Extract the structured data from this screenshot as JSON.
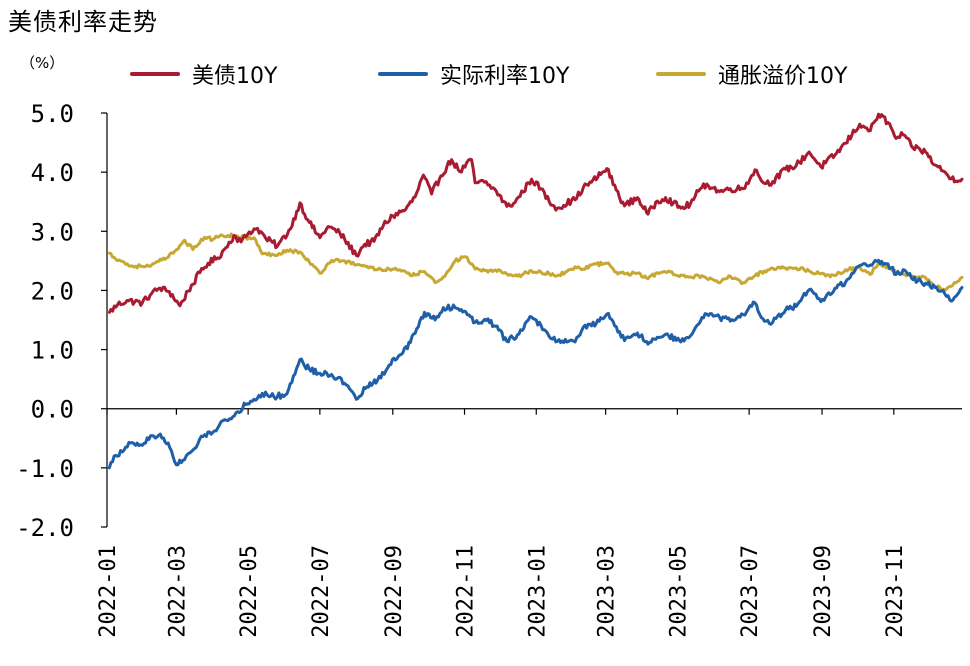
{
  "title": "美债利率走势",
  "unit": "（%）",
  "colors": {
    "nominal": "#a91b31",
    "real": "#1f5fa8",
    "breakeven": "#c7a832",
    "axis": "#000000"
  },
  "chart_data": {
    "type": "line",
    "title": "美债利率走势",
    "ylabel": "（%）",
    "xlabel": "",
    "ylim": [
      -2.0,
      5.0
    ],
    "yticks": [
      "5.0",
      "4.0",
      "3.0",
      "2.0",
      "1.0",
      "0.0",
      "-1.0",
      "-2.0"
    ],
    "xlim": [
      "2022-01-01",
      "2023-12-29"
    ],
    "xticks": [
      "2022-01",
      "2022-03",
      "2022-05",
      "2022-07",
      "2022-09",
      "2022-11",
      "2023-01",
      "2023-03",
      "2023-05",
      "2023-07",
      "2023-09",
      "2023-11"
    ],
    "grid": false,
    "legend_position": "top",
    "series": [
      {
        "name": "美债10Y",
        "color": "#a91b31",
        "points": [
          [
            "2022-01-03",
            1.63
          ],
          [
            "2022-01-10",
            1.76
          ],
          [
            "2022-01-18",
            1.83
          ],
          [
            "2022-01-31",
            1.79
          ],
          [
            "2022-02-08",
            1.95
          ],
          [
            "2022-02-15",
            2.04
          ],
          [
            "2022-02-23",
            1.98
          ],
          [
            "2022-03-04",
            1.74
          ],
          [
            "2022-03-11",
            1.99
          ],
          [
            "2022-03-21",
            2.3
          ],
          [
            "2022-03-28",
            2.46
          ],
          [
            "2022-04-05",
            2.55
          ],
          [
            "2022-04-12",
            2.72
          ],
          [
            "2022-04-19",
            2.93
          ],
          [
            "2022-04-25",
            2.82
          ],
          [
            "2022-05-02",
            2.99
          ],
          [
            "2022-05-09",
            3.05
          ],
          [
            "2022-05-16",
            2.88
          ],
          [
            "2022-05-26",
            2.75
          ],
          [
            "2022-06-06",
            3.04
          ],
          [
            "2022-06-14",
            3.48
          ],
          [
            "2022-06-22",
            3.15
          ],
          [
            "2022-07-01",
            2.89
          ],
          [
            "2022-07-08",
            3.08
          ],
          [
            "2022-07-18",
            2.97
          ],
          [
            "2022-08-01",
            2.59
          ],
          [
            "2022-08-08",
            2.78
          ],
          [
            "2022-08-16",
            2.83
          ],
          [
            "2022-08-24",
            3.1
          ],
          [
            "2022-09-01",
            3.26
          ],
          [
            "2022-09-12",
            3.37
          ],
          [
            "2022-09-20",
            3.58
          ],
          [
            "2022-09-27",
            3.95
          ],
          [
            "2022-10-04",
            3.63
          ],
          [
            "2022-10-12",
            3.94
          ],
          [
            "2022-10-21",
            4.21
          ],
          [
            "2022-10-28",
            4.01
          ],
          [
            "2022-11-07",
            4.21
          ],
          [
            "2022-11-10",
            3.82
          ],
          [
            "2022-11-18",
            3.83
          ],
          [
            "2022-11-28",
            3.68
          ],
          [
            "2022-12-07",
            3.42
          ],
          [
            "2022-12-14",
            3.49
          ],
          [
            "2022-12-28",
            3.88
          ],
          [
            "2023-01-05",
            3.72
          ],
          [
            "2023-01-12",
            3.5
          ],
          [
            "2023-01-19",
            3.39
          ],
          [
            "2023-01-31",
            3.52
          ],
          [
            "2023-02-03",
            3.53
          ],
          [
            "2023-02-10",
            3.74
          ],
          [
            "2023-02-17",
            3.83
          ],
          [
            "2023-03-02",
            4.06
          ],
          [
            "2023-03-10",
            3.7
          ],
          [
            "2023-03-17",
            3.43
          ],
          [
            "2023-03-28",
            3.57
          ],
          [
            "2023-04-06",
            3.29
          ],
          [
            "2023-04-14",
            3.51
          ],
          [
            "2023-04-21",
            3.57
          ],
          [
            "2023-05-04",
            3.39
          ],
          [
            "2023-05-12",
            3.46
          ],
          [
            "2023-05-19",
            3.68
          ],
          [
            "2023-05-26",
            3.8
          ],
          [
            "2023-06-06",
            3.67
          ],
          [
            "2023-06-15",
            3.72
          ],
          [
            "2023-06-26",
            3.72
          ],
          [
            "2023-07-06",
            4.04
          ],
          [
            "2023-07-14",
            3.81
          ],
          [
            "2023-07-21",
            3.84
          ],
          [
            "2023-08-01",
            4.05
          ],
          [
            "2023-08-10",
            4.11
          ],
          [
            "2023-08-21",
            4.34
          ],
          [
            "2023-08-31",
            4.09
          ],
          [
            "2023-09-12",
            4.29
          ],
          [
            "2023-09-21",
            4.49
          ],
          [
            "2023-10-03",
            4.81
          ],
          [
            "2023-10-06",
            4.78
          ],
          [
            "2023-10-12",
            4.7
          ],
          [
            "2023-10-19",
            4.98
          ],
          [
            "2023-10-27",
            4.84
          ],
          [
            "2023-11-03",
            4.57
          ],
          [
            "2023-11-09",
            4.63
          ],
          [
            "2023-11-16",
            4.44
          ],
          [
            "2023-11-28",
            4.34
          ],
          [
            "2023-12-06",
            4.12
          ],
          [
            "2023-12-13",
            4.02
          ],
          [
            "2023-12-20",
            3.89
          ],
          [
            "2023-12-29",
            3.88
          ]
        ]
      },
      {
        "name": "实际利率10Y",
        "color": "#1f5fa8",
        "points": [
          [
            "2022-01-03",
            -1.0
          ],
          [
            "2022-01-07",
            -0.8
          ],
          [
            "2022-01-14",
            -0.73
          ],
          [
            "2022-01-21",
            -0.58
          ],
          [
            "2022-01-31",
            -0.62
          ],
          [
            "2022-02-07",
            -0.46
          ],
          [
            "2022-02-14",
            -0.45
          ],
          [
            "2022-02-22",
            -0.58
          ],
          [
            "2022-03-01",
            -0.95
          ],
          [
            "2022-03-08",
            -0.86
          ],
          [
            "2022-03-15",
            -0.7
          ],
          [
            "2022-03-25",
            -0.44
          ],
          [
            "2022-04-01",
            -0.4
          ],
          [
            "2022-04-08",
            -0.22
          ],
          [
            "2022-04-14",
            -0.2
          ],
          [
            "2022-04-22",
            -0.05
          ],
          [
            "2022-04-29",
            0.07
          ],
          [
            "2022-05-06",
            0.16
          ],
          [
            "2022-05-13",
            0.26
          ],
          [
            "2022-05-23",
            0.2
          ],
          [
            "2022-06-03",
            0.25
          ],
          [
            "2022-06-14",
            0.83
          ],
          [
            "2022-06-22",
            0.67
          ],
          [
            "2022-07-01",
            0.6
          ],
          [
            "2022-07-11",
            0.58
          ],
          [
            "2022-07-22",
            0.43
          ],
          [
            "2022-08-01",
            0.16
          ],
          [
            "2022-08-10",
            0.37
          ],
          [
            "2022-08-19",
            0.48
          ],
          [
            "2022-08-29",
            0.74
          ],
          [
            "2022-09-07",
            0.91
          ],
          [
            "2022-09-16",
            1.12
          ],
          [
            "2022-09-28",
            1.63
          ],
          [
            "2022-10-07",
            1.5
          ],
          [
            "2022-10-14",
            1.71
          ],
          [
            "2022-10-24",
            1.71
          ],
          [
            "2022-11-02",
            1.64
          ],
          [
            "2022-11-10",
            1.46
          ],
          [
            "2022-11-21",
            1.52
          ],
          [
            "2022-11-30",
            1.33
          ],
          [
            "2022-12-07",
            1.14
          ],
          [
            "2022-12-16",
            1.25
          ],
          [
            "2022-12-28",
            1.55
          ],
          [
            "2023-01-05",
            1.41
          ],
          [
            "2023-01-12",
            1.22
          ],
          [
            "2023-01-19",
            1.14
          ],
          [
            "2023-01-31",
            1.16
          ],
          [
            "2023-02-03",
            1.13
          ],
          [
            "2023-02-10",
            1.38
          ],
          [
            "2023-02-17",
            1.4
          ],
          [
            "2023-03-02",
            1.6
          ],
          [
            "2023-03-10",
            1.39
          ],
          [
            "2023-03-17",
            1.15
          ],
          [
            "2023-03-28",
            1.28
          ],
          [
            "2023-04-06",
            1.09
          ],
          [
            "2023-04-14",
            1.21
          ],
          [
            "2023-04-21",
            1.26
          ],
          [
            "2023-05-04",
            1.13
          ],
          [
            "2023-05-12",
            1.23
          ],
          [
            "2023-05-19",
            1.43
          ],
          [
            "2023-05-26",
            1.6
          ],
          [
            "2023-06-06",
            1.54
          ],
          [
            "2023-06-15",
            1.48
          ],
          [
            "2023-06-26",
            1.59
          ],
          [
            "2023-07-06",
            1.79
          ],
          [
            "2023-07-14",
            1.48
          ],
          [
            "2023-07-21",
            1.46
          ],
          [
            "2023-08-01",
            1.67
          ],
          [
            "2023-08-10",
            1.73
          ],
          [
            "2023-08-21",
            2.01
          ],
          [
            "2023-08-31",
            1.81
          ],
          [
            "2023-09-12",
            2.04
          ],
          [
            "2023-09-21",
            2.14
          ],
          [
            "2023-10-03",
            2.42
          ],
          [
            "2023-10-06",
            2.45
          ],
          [
            "2023-10-12",
            2.43
          ],
          [
            "2023-10-19",
            2.51
          ],
          [
            "2023-10-27",
            2.45
          ],
          [
            "2023-11-03",
            2.27
          ],
          [
            "2023-11-09",
            2.35
          ],
          [
            "2023-11-16",
            2.21
          ],
          [
            "2023-11-28",
            2.12
          ],
          [
            "2023-12-06",
            2.05
          ],
          [
            "2023-12-13",
            2.0
          ],
          [
            "2023-12-20",
            1.82
          ],
          [
            "2023-12-29",
            2.05
          ]
        ]
      },
      {
        "name": "通胀溢价10Y",
        "color": "#c7a832",
        "points": [
          [
            "2022-01-03",
            2.63
          ],
          [
            "2022-01-07",
            2.56
          ],
          [
            "2022-01-14",
            2.49
          ],
          [
            "2022-01-21",
            2.41
          ],
          [
            "2022-01-31",
            2.41
          ],
          [
            "2022-02-07",
            2.41
          ],
          [
            "2022-02-14",
            2.49
          ],
          [
            "2022-02-22",
            2.56
          ],
          [
            "2022-03-01",
            2.69
          ],
          [
            "2022-03-08",
            2.85
          ],
          [
            "2022-03-15",
            2.69
          ],
          [
            "2022-03-25",
            2.9
          ],
          [
            "2022-04-01",
            2.86
          ],
          [
            "2022-04-08",
            2.94
          ],
          [
            "2022-04-14",
            2.93
          ],
          [
            "2022-04-22",
            2.92
          ],
          [
            "2022-04-29",
            2.89
          ],
          [
            "2022-05-06",
            2.89
          ],
          [
            "2022-05-13",
            2.62
          ],
          [
            "2022-05-23",
            2.6
          ],
          [
            "2022-06-03",
            2.68
          ],
          [
            "2022-06-14",
            2.65
          ],
          [
            "2022-06-22",
            2.48
          ],
          [
            "2022-07-01",
            2.29
          ],
          [
            "2022-07-11",
            2.51
          ],
          [
            "2022-07-22",
            2.5
          ],
          [
            "2022-08-01",
            2.43
          ],
          [
            "2022-08-10",
            2.41
          ],
          [
            "2022-08-19",
            2.35
          ],
          [
            "2022-08-29",
            2.36
          ],
          [
            "2022-09-07",
            2.35
          ],
          [
            "2022-09-16",
            2.25
          ],
          [
            "2022-09-28",
            2.32
          ],
          [
            "2022-10-07",
            2.13
          ],
          [
            "2022-10-14",
            2.23
          ],
          [
            "2022-10-24",
            2.5
          ],
          [
            "2022-11-02",
            2.57
          ],
          [
            "2022-11-10",
            2.36
          ],
          [
            "2022-11-21",
            2.31
          ],
          [
            "2022-11-30",
            2.35
          ],
          [
            "2022-12-07",
            2.28
          ],
          [
            "2022-12-16",
            2.24
          ],
          [
            "2022-12-28",
            2.33
          ],
          [
            "2023-01-05",
            2.31
          ],
          [
            "2023-01-12",
            2.28
          ],
          [
            "2023-01-19",
            2.25
          ],
          [
            "2023-01-31",
            2.36
          ],
          [
            "2023-02-03",
            2.4
          ],
          [
            "2023-02-10",
            2.36
          ],
          [
            "2023-02-17",
            2.43
          ],
          [
            "2023-03-02",
            2.46
          ],
          [
            "2023-03-10",
            2.31
          ],
          [
            "2023-03-17",
            2.28
          ],
          [
            "2023-03-28",
            2.29
          ],
          [
            "2023-04-06",
            2.2
          ],
          [
            "2023-04-14",
            2.3
          ],
          [
            "2023-04-21",
            2.31
          ],
          [
            "2023-05-04",
            2.26
          ],
          [
            "2023-05-12",
            2.23
          ],
          [
            "2023-05-19",
            2.25
          ],
          [
            "2023-05-26",
            2.2
          ],
          [
            "2023-06-06",
            2.13
          ],
          [
            "2023-06-15",
            2.24
          ],
          [
            "2023-06-26",
            2.13
          ],
          [
            "2023-07-06",
            2.25
          ],
          [
            "2023-07-14",
            2.33
          ],
          [
            "2023-07-21",
            2.38
          ],
          [
            "2023-08-01",
            2.38
          ],
          [
            "2023-08-10",
            2.38
          ],
          [
            "2023-08-21",
            2.33
          ],
          [
            "2023-08-31",
            2.28
          ],
          [
            "2023-09-12",
            2.25
          ],
          [
            "2023-09-21",
            2.35
          ],
          [
            "2023-10-03",
            2.39
          ],
          [
            "2023-10-06",
            2.33
          ],
          [
            "2023-10-12",
            2.27
          ],
          [
            "2023-10-19",
            2.47
          ],
          [
            "2023-10-27",
            2.39
          ],
          [
            "2023-11-03",
            2.3
          ],
          [
            "2023-11-09",
            2.28
          ],
          [
            "2023-11-16",
            2.23
          ],
          [
            "2023-11-28",
            2.22
          ],
          [
            "2023-12-06",
            2.07
          ],
          [
            "2023-12-13",
            2.02
          ],
          [
            "2023-12-20",
            2.07
          ],
          [
            "2023-12-29",
            2.22
          ]
        ]
      }
    ]
  }
}
